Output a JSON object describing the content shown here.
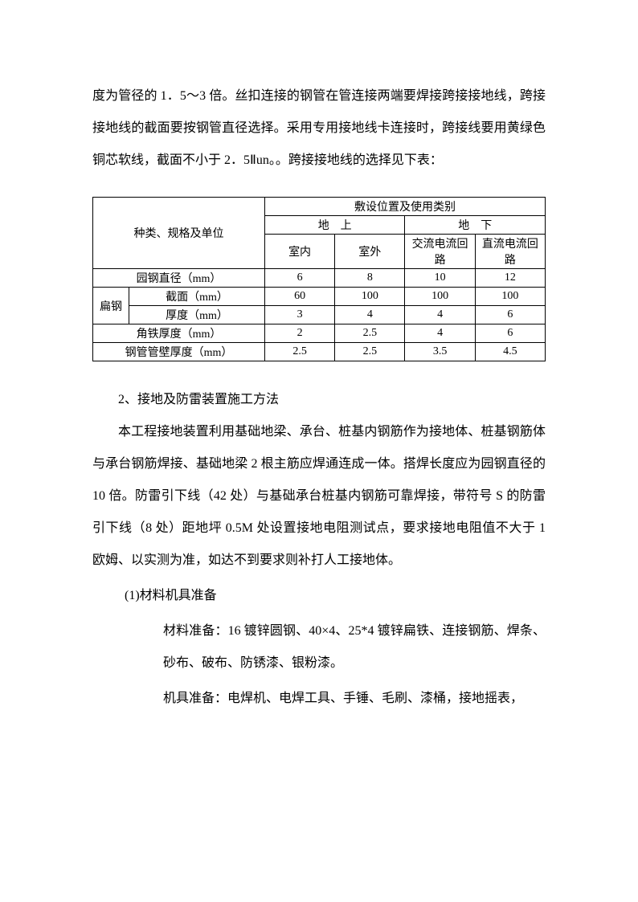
{
  "intro": {
    "p1": "度为管径的 1．5～3 倍。丝扣连接的钢管在管连接两端要焊接跨接接地线，跨接接地线的截面要按钢管直径选择。采用专用接地线卡连接时，跨接线要用黄绿色铜芯软线，截面不小于 2．5Ⅱun。。跨接接地线的选择见下表："
  },
  "table": {
    "header_main": "敷设位置及使用类别",
    "header_spec": "种类、规格及单位",
    "header_above": "地　上",
    "header_below": "地　下",
    "header_indoor": "室内",
    "header_outdoor": "室外",
    "header_ac": "交流电流回路",
    "header_dc": "直流电流回路",
    "rows": {
      "r1_label": "园钢直径（mm）",
      "r1_v1": "6",
      "r1_v2": "8",
      "r1_v3": "10",
      "r1_v4": "12",
      "flat_label": "扁钢",
      "r2_label": "截面（mm）",
      "r2_v1": "60",
      "r2_v2": "100",
      "r2_v3": "100",
      "r2_v4": "100",
      "r3_label": "厚度（mm）",
      "r3_v1": "3",
      "r3_v2": "4",
      "r3_v3": "4",
      "r3_v4": "6",
      "r4_label": "角铁厚度（mm）",
      "r4_v1": "2",
      "r4_v2": "2.5",
      "r4_v3": "4",
      "r4_v4": "6",
      "r5_label": "钢管管壁厚度（mm）",
      "r5_v1": "2.5",
      "r5_v2": "2.5",
      "r5_v3": "3.5",
      "r5_v4": "4.5"
    }
  },
  "body": {
    "section2": "2、接地及防雷装置施工方法",
    "p2": "本工程接地装置利用基础地梁、承台、桩基内钢筋作为接地体、桩基钢筋体与承台钢筋焊接、基础地梁 2 根主筋应焊通连成一体。搭焊长度应为园钢直径的 10 倍。防雷引下线（42 处）与基础承台桩基内钢筋可靠焊接，带符号 S 的防雷引下线（8 处）距地坪 0.5M 处设置接地电阻测试点，要求接地电阻值不大于 1 欧姆、以实测为准，如达不到要求则补打人工接地体。",
    "list1": "(1)材料机具准备",
    "mat1": "材料准备：16 镀锌圆钢、40×4、25*4 镀锌扁铁、连接钢筋、焊条、砂布、破布、防锈漆、银粉漆。",
    "mat2": "机具准备：电焊机、电焊工具、手锤、毛刷、漆桶，接地摇表，"
  }
}
